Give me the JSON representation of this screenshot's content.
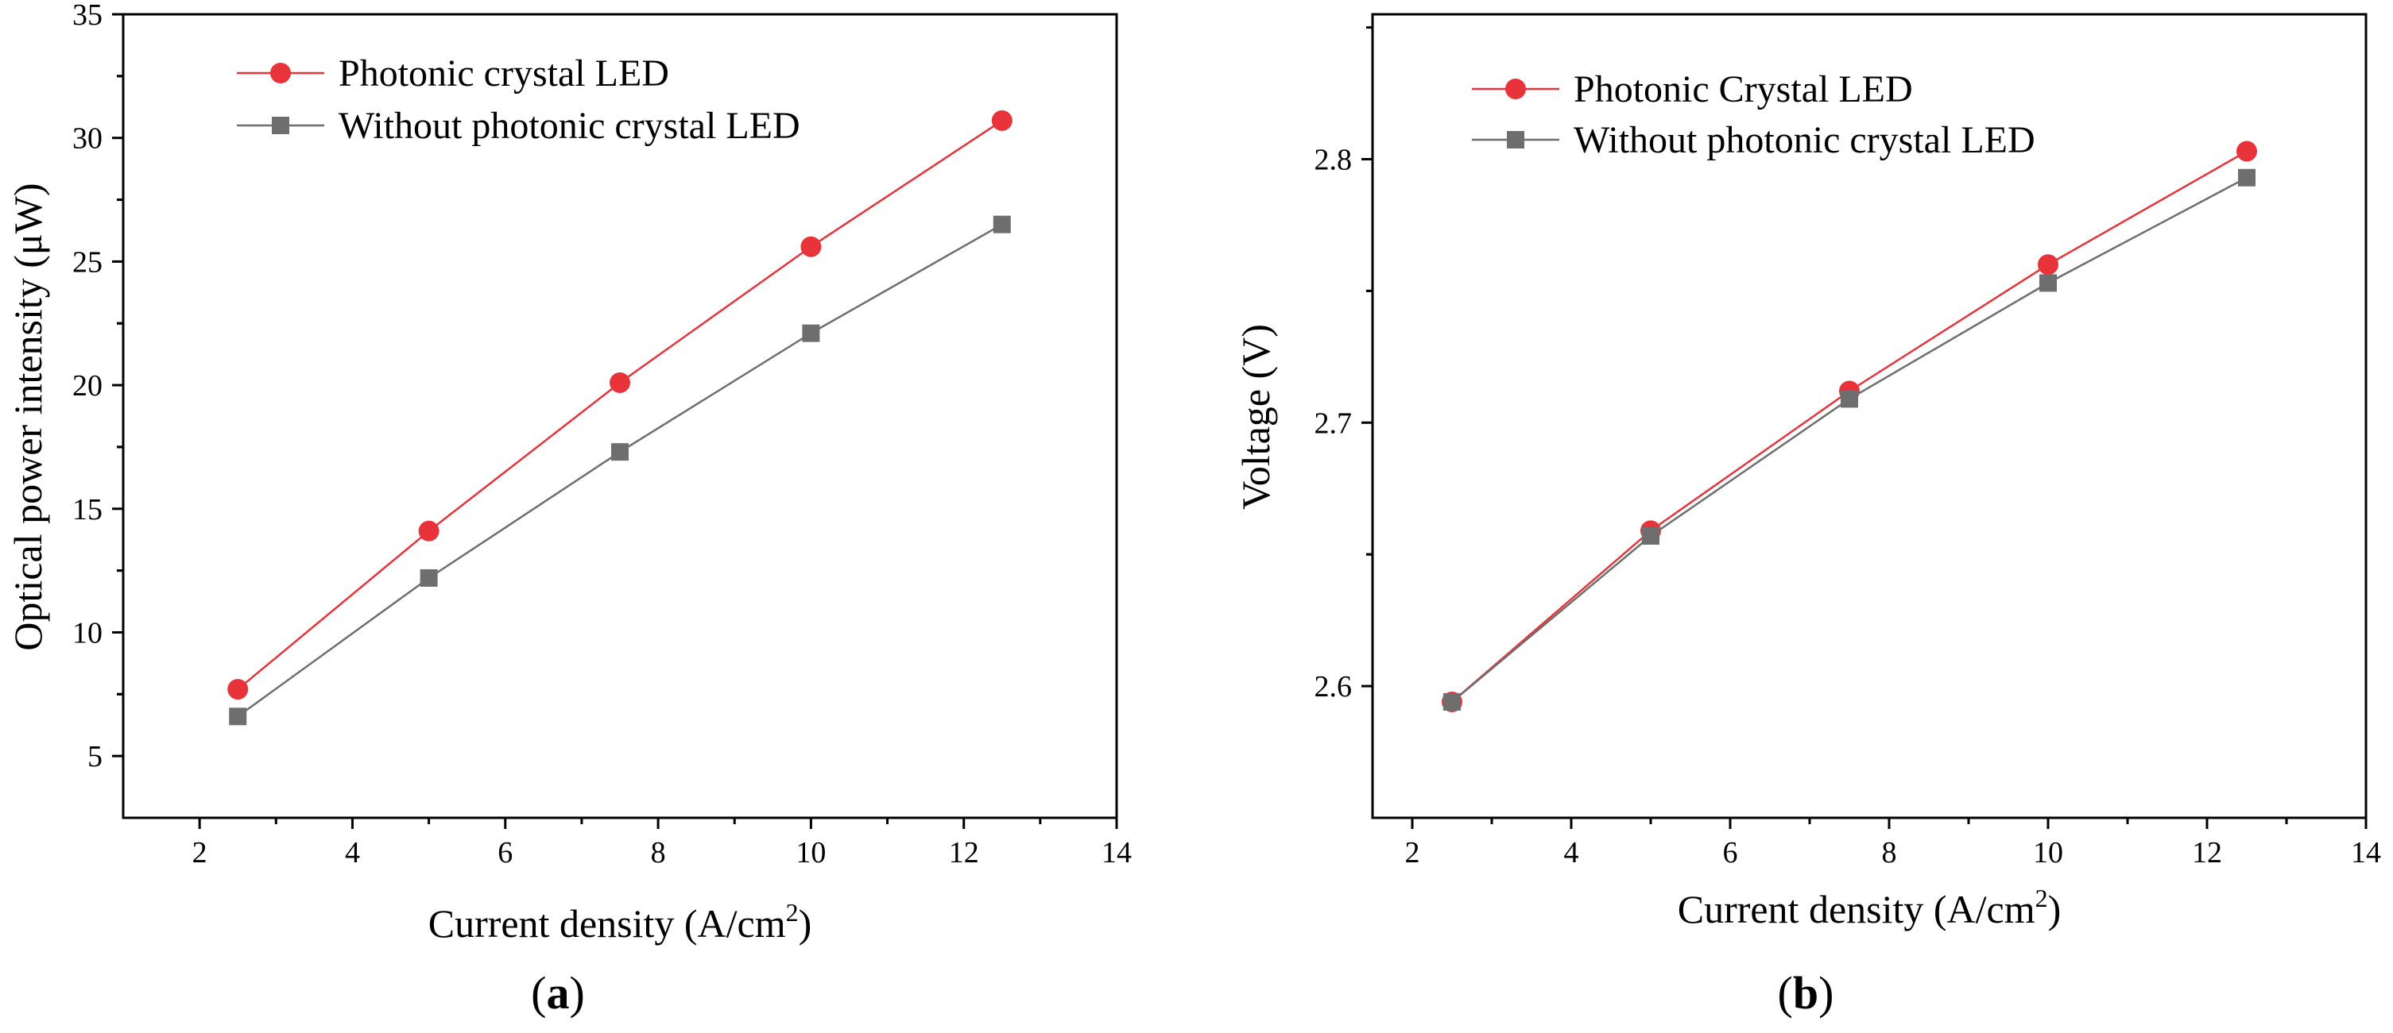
{
  "chart_data": [
    {
      "type": "line",
      "panel_label": "a",
      "xlabel": "Current density (A/cm",
      "xlabel_sup": "2",
      "xlabel_close": ")",
      "ylabel": "Optical power intensity (μW)",
      "xlim": [
        1,
        14
      ],
      "ylim": [
        2.5,
        35
      ],
      "xticks": [
        2,
        4,
        6,
        8,
        10,
        12,
        14
      ],
      "yticks": [
        5,
        10,
        15,
        20,
        25,
        30,
        35
      ],
      "x": [
        2.5,
        5,
        7.5,
        10,
        12.5
      ],
      "legend_position": "top-left",
      "series": [
        {
          "name": "Photonic crystal LED",
          "marker": "circle",
          "color": "#e8333b",
          "values": [
            7.7,
            14.1,
            20.1,
            25.6,
            30.7
          ]
        },
        {
          "name": "Without photonic crystal LED",
          "marker": "square",
          "color": "#6e6e6e",
          "values": [
            6.6,
            12.2,
            17.3,
            22.1,
            26.5
          ]
        }
      ]
    },
    {
      "type": "line",
      "panel_label": "b",
      "xlabel": "Current density (A/cm",
      "xlabel_sup": "2",
      "xlabel_close": ")",
      "ylabel": "Voltage (V)",
      "xlim": [
        1.5,
        14
      ],
      "ylim": [
        2.55,
        2.855
      ],
      "xticks": [
        2,
        4,
        6,
        8,
        10,
        12,
        14
      ],
      "yticks": [
        2.6,
        2.7,
        2.8
      ],
      "x": [
        2.5,
        5,
        7.5,
        10,
        12.5
      ],
      "legend_position": "top-left",
      "series": [
        {
          "name": "Photonic Crystal LED",
          "marker": "circle",
          "color": "#e8333b",
          "values": [
            2.594,
            2.659,
            2.712,
            2.76,
            2.803
          ]
        },
        {
          "name": "Without photonic crystal LED",
          "marker": "square",
          "color": "#6e6e6e",
          "values": [
            2.594,
            2.657,
            2.709,
            2.753,
            2.793
          ]
        }
      ]
    }
  ]
}
